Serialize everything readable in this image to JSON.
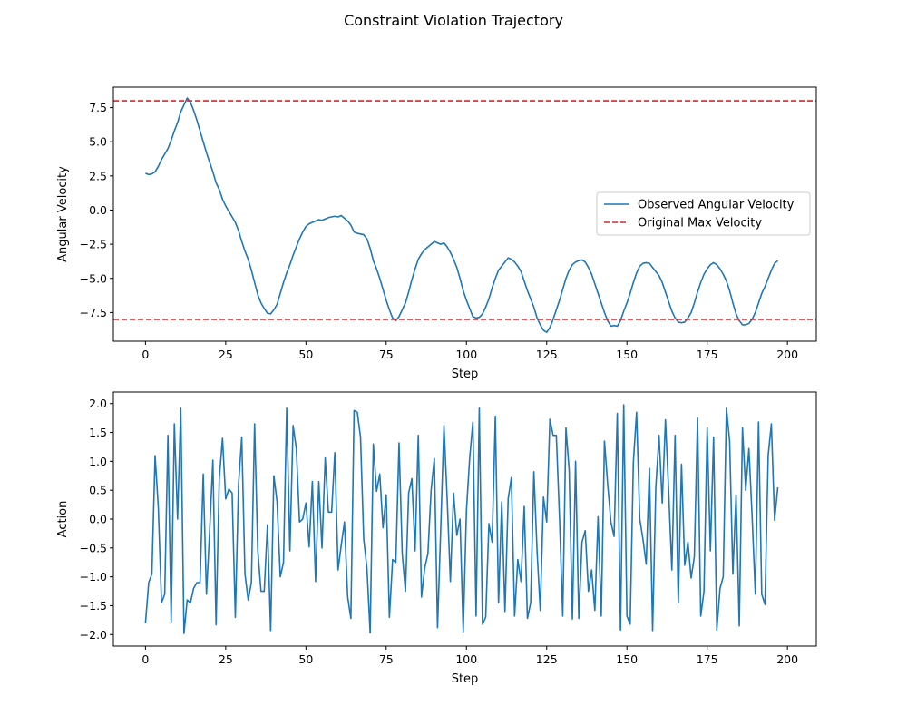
{
  "figure_title": "Constraint Violation Trajectory",
  "colors": {
    "series": "#1f77b4",
    "constraint": "#d62728"
  },
  "chart_data": [
    {
      "type": "line",
      "xlabel": "Step",
      "ylabel": "Angular Velocity",
      "xlim": [
        -10,
        209
      ],
      "ylim": [
        -9.6,
        9.0
      ],
      "xticks": [
        0,
        25,
        50,
        75,
        100,
        125,
        150,
        175,
        200
      ],
      "yticks": [
        -7.5,
        -5.0,
        -2.5,
        0.0,
        2.5,
        5.0,
        7.5
      ],
      "ytick_labels": [
        "−7.5",
        "−5.0",
        "−2.5",
        "0.0",
        "2.5",
        "5.0",
        "7.5"
      ],
      "legend_position": "center-right",
      "series": [
        {
          "name": "Observed Angular Velocity",
          "x_start": 0,
          "x_step": 1,
          "values": [
            2.7,
            2.6,
            2.65,
            2.8,
            3.2,
            3.7,
            4.1,
            4.5,
            5.1,
            5.8,
            6.4,
            7.2,
            7.7,
            8.2,
            7.9,
            7.3,
            6.6,
            5.8,
            5.0,
            4.2,
            3.5,
            2.8,
            2.0,
            1.5,
            0.8,
            0.3,
            -0.1,
            -0.5,
            -0.9,
            -1.5,
            -2.3,
            -3.0,
            -3.6,
            -4.4,
            -5.3,
            -6.2,
            -6.8,
            -7.2,
            -7.55,
            -7.6,
            -7.3,
            -6.9,
            -6.1,
            -5.3,
            -4.6,
            -4.0,
            -3.3,
            -2.7,
            -2.1,
            -1.6,
            -1.2,
            -1.0,
            -0.9,
            -0.8,
            -0.7,
            -0.75,
            -0.65,
            -0.55,
            -0.5,
            -0.45,
            -0.5,
            -0.4,
            -0.6,
            -0.8,
            -1.1,
            -1.6,
            -1.7,
            -1.75,
            -1.8,
            -2.1,
            -2.8,
            -3.7,
            -4.3,
            -5.0,
            -5.8,
            -6.6,
            -7.3,
            -7.9,
            -8.1,
            -7.8,
            -7.3,
            -6.8,
            -6.0,
            -5.1,
            -4.3,
            -3.6,
            -3.2,
            -2.9,
            -2.7,
            -2.5,
            -2.3,
            -2.4,
            -2.5,
            -2.4,
            -2.7,
            -3.1,
            -3.6,
            -4.2,
            -5.0,
            -5.9,
            -6.6,
            -7.2,
            -7.8,
            -7.9,
            -7.85,
            -7.6,
            -7.1,
            -6.5,
            -5.7,
            -5.0,
            -4.4,
            -4.1,
            -3.8,
            -3.5,
            -3.6,
            -3.8,
            -4.1,
            -4.5,
            -5.2,
            -5.9,
            -6.5,
            -7.1,
            -7.9,
            -8.4,
            -8.8,
            -8.95,
            -8.6,
            -8.0,
            -7.3,
            -6.6,
            -5.8,
            -5.0,
            -4.4,
            -4.0,
            -3.8,
            -3.7,
            -3.65,
            -3.8,
            -4.2,
            -4.7,
            -5.4,
            -6.1,
            -6.8,
            -7.5,
            -8.1,
            -8.5,
            -8.45,
            -8.5,
            -8.1,
            -7.4,
            -6.8,
            -6.1,
            -5.3,
            -4.6,
            -4.1,
            -3.9,
            -3.85,
            -3.9,
            -4.2,
            -4.5,
            -4.8,
            -5.3,
            -6.0,
            -6.7,
            -7.4,
            -7.9,
            -8.2,
            -8.25,
            -8.2,
            -7.9,
            -7.5,
            -6.8,
            -6.0,
            -5.3,
            -4.7,
            -4.3,
            -4.0,
            -3.85,
            -4.0,
            -4.3,
            -4.7,
            -5.2,
            -5.9,
            -6.8,
            -7.6,
            -8.1,
            -8.4,
            -8.4,
            -8.3,
            -8.0,
            -7.5,
            -6.8,
            -6.1,
            -5.6,
            -5.0,
            -4.4,
            -3.9,
            -3.7
          ]
        }
      ],
      "hlines": [
        {
          "name": "Original Max Velocity",
          "value": 8.0,
          "style": "dashed"
        },
        {
          "name": "",
          "value": -8.0,
          "style": "dashed"
        }
      ]
    },
    {
      "type": "line",
      "xlabel": "Step",
      "ylabel": "Action",
      "xlim": [
        -10,
        209
      ],
      "ylim": [
        -2.2,
        2.2
      ],
      "xticks": [
        0,
        25,
        50,
        75,
        100,
        125,
        150,
        175,
        200
      ],
      "yticks": [
        -2.0,
        -1.5,
        -1.0,
        -0.5,
        0.0,
        0.5,
        1.0,
        1.5,
        2.0
      ],
      "ytick_labels": [
        "−2.0",
        "−1.5",
        "−1.0",
        "−0.5",
        "0.0",
        "0.5",
        "1.0",
        "1.5",
        "2.0"
      ],
      "series": [
        {
          "x_start": 0,
          "x_step": 1,
          "values": [
            -1.8,
            -1.1,
            -0.95,
            1.1,
            0.2,
            -1.45,
            -1.3,
            1.45,
            -1.78,
            1.65,
            0.0,
            1.92,
            -1.98,
            -1.4,
            -1.45,
            -1.2,
            -1.1,
            -1.1,
            0.78,
            -1.3,
            -0.2,
            1.02,
            -1.83,
            0.7,
            1.4,
            0.35,
            0.52,
            0.45,
            -1.7,
            0.6,
            1.42,
            -0.95,
            -1.4,
            -1.1,
            1.65,
            -0.55,
            -1.25,
            -1.25,
            -0.1,
            -1.93,
            0.75,
            0.3,
            -1.0,
            -0.75,
            1.92,
            -0.55,
            1.62,
            1.22,
            -0.05,
            0.0,
            0.28,
            -0.48,
            0.65,
            -1.08,
            0.65,
            -0.5,
            1.06,
            0.12,
            0.12,
            1.15,
            -0.88,
            -0.45,
            -0.05,
            -1.35,
            -1.72,
            1.88,
            1.85,
            1.42,
            -0.35,
            -0.85,
            -1.97,
            1.3,
            0.48,
            0.78,
            -0.15,
            0.42,
            -1.7,
            -0.7,
            -0.75,
            1.32,
            -0.6,
            -1.25,
            0.45,
            0.7,
            -0.55,
            1.45,
            -1.35,
            -0.85,
            -0.6,
            0.5,
            1.05,
            -1.88,
            -0.15,
            1.62,
            0.35,
            -1.08,
            0.45,
            -0.28,
            0.0,
            -1.95,
            0.15,
            1.05,
            1.68,
            -1.68,
            1.92,
            -1.82,
            -1.7,
            -0.08,
            -0.4,
            1.78,
            -1.45,
            0.3,
            -1.6,
            0.35,
            0.72,
            -1.68,
            -0.7,
            -1.08,
            0.22,
            -1.72,
            -1.45,
            0.82,
            -0.55,
            -1.58,
            0.38,
            -0.05,
            1.73,
            1.45,
            1.45,
            0.02,
            -1.68,
            1.58,
            0.85,
            -1.73,
            1.0,
            -1.72,
            -0.4,
            -0.2,
            -1.25,
            -0.88,
            -1.58,
            0.04,
            -1.68,
            1.35,
            0.6,
            -0.05,
            -0.3,
            1.83,
            -1.92,
            1.98,
            -1.68,
            -1.82,
            0.98,
            1.85,
            0.0,
            -0.35,
            -0.78,
            0.88,
            -1.93,
            0.55,
            1.45,
            0.28,
            1.72,
            0.48,
            -0.88,
            1.45,
            -1.45,
            0.95,
            -0.8,
            -0.4,
            -1.02,
            -0.65,
            1.75,
            -1.68,
            -1.25,
            1.58,
            -0.55,
            1.42,
            -1.92,
            -1.2,
            -1.0,
            1.92,
            1.35,
            -0.95,
            0.42,
            -1.85,
            1.58,
            0.5,
            1.22,
            0.05,
            -1.3,
            1.68,
            -1.3,
            -1.48,
            1.1,
            1.65,
            -0.02,
            0.55
          ]
        }
      ]
    }
  ]
}
